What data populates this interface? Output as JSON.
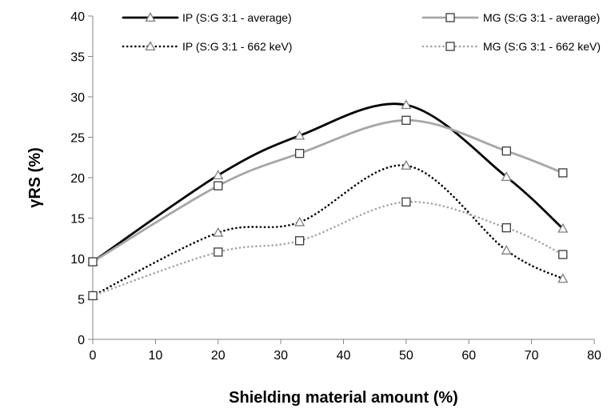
{
  "chart_data": {
    "type": "line",
    "xlabel": "Shielding material amount (%)",
    "ylabel": "γRS (%)",
    "xlim": [
      0,
      80
    ],
    "ylim": [
      0,
      40
    ],
    "x_ticks": [
      "0",
      "10",
      "20",
      "30",
      "40",
      "50",
      "60",
      "70",
      "80"
    ],
    "y_ticks": [
      "0",
      "5",
      "10",
      "15",
      "20",
      "25",
      "30",
      "35",
      "40"
    ],
    "grid": false,
    "legend_position": "top",
    "x": [
      0,
      20,
      33,
      50,
      66,
      75
    ],
    "series": [
      {
        "name": "IP (S:G 3:1 - average)",
        "values": [
          9.6,
          20.3,
          25.2,
          29.0,
          20.1,
          13.7
        ],
        "color": "#000000",
        "dash": "solid",
        "marker": "triangle"
      },
      {
        "name": "MG (S:G 3:1 - average)",
        "values": [
          9.6,
          19.0,
          23.0,
          27.1,
          23.3,
          20.6
        ],
        "color": "#a6a6a6",
        "dash": "solid",
        "marker": "square"
      },
      {
        "name": "IP (S:G 3:1 - 662 keV)",
        "values": [
          5.4,
          13.2,
          14.5,
          21.5,
          11.0,
          7.5
        ],
        "color": "#000000",
        "dash": "dotted",
        "marker": "triangle"
      },
      {
        "name": "MG (S:G 3:1 - 662 keV)",
        "values": [
          5.4,
          10.8,
          12.2,
          17.0,
          13.8,
          10.5
        ],
        "color": "#a6a6a6",
        "dash": "dotted",
        "marker": "square"
      }
    ]
  }
}
